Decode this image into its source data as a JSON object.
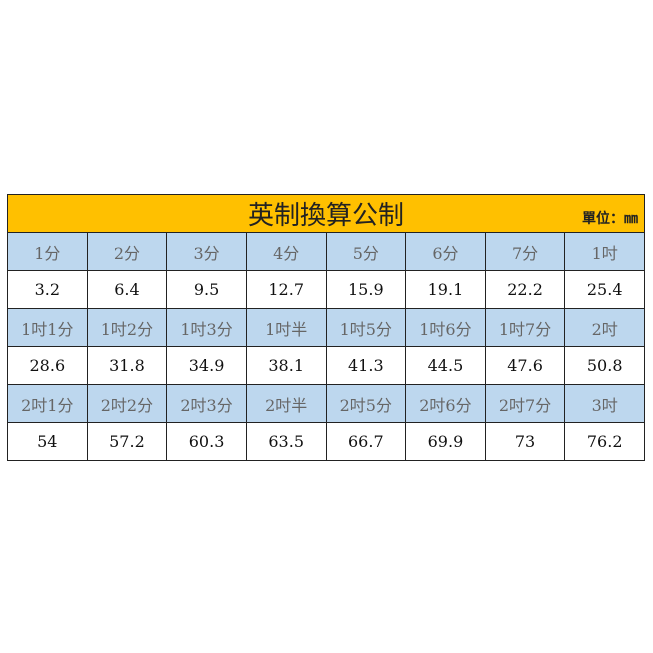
{
  "title": "英制換算公制",
  "unit_label": "單位：㎜",
  "colors": {
    "title_bg": "#FFC000",
    "header_bg": "#BDD7EE"
  },
  "rows": [
    {
      "headers": [
        "1分",
        "2分",
        "3分",
        "4分",
        "5分",
        "6分",
        "7分",
        "1吋"
      ],
      "values": [
        "3.2",
        "6.4",
        "9.5",
        "12.7",
        "15.9",
        "19.1",
        "22.2",
        "25.4"
      ]
    },
    {
      "headers": [
        "1吋1分",
        "1吋2分",
        "1吋3分",
        "1吋半",
        "1吋5分",
        "1吋6分",
        "1吋7分",
        "2吋"
      ],
      "values": [
        "28.6",
        "31.8",
        "34.9",
        "38.1",
        "41.3",
        "44.5",
        "47.6",
        "50.8"
      ]
    },
    {
      "headers": [
        "2吋1分",
        "2吋2分",
        "2吋3分",
        "2吋半",
        "2吋5分",
        "2吋6分",
        "2吋7分",
        "3吋"
      ],
      "values": [
        "54",
        "57.2",
        "60.3",
        "63.5",
        "66.7",
        "69.9",
        "73",
        "76.2"
      ]
    }
  ]
}
